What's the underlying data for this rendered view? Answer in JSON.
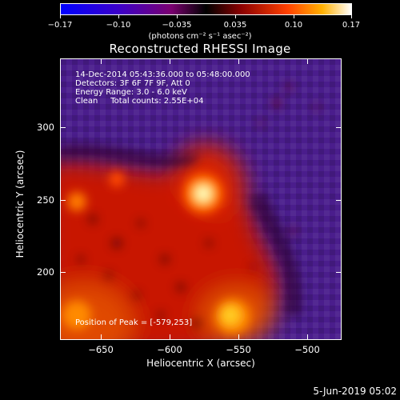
{
  "colorbar": {
    "tick_labels": [
      "−0.17",
      "−0.10",
      "−0.035",
      "0.035",
      "0.10",
      "0.17"
    ],
    "tick_values": [
      -0.17,
      -0.1,
      -0.035,
      0.035,
      0.1,
      0.17
    ],
    "unit_label": "(photons cm⁻² s⁻¹ asec⁻²)"
  },
  "title": "Reconstructed RHESSI Image",
  "info": {
    "line1": "14-Dec-2014 05:43:36.000 to 05:48:00.000",
    "line2": "Detectors: 3F 6F 7F 9F, Att 0",
    "line3": "Energy Range: 3.0 - 6.0 keV",
    "line4": "Clean     Total counts: 2.55E+04",
    "peak": "Position of Peak = [-579,253]"
  },
  "axes": {
    "x_label": "Heliocentric X (arcsec)",
    "y_label": "Heliocentric Y (arcsec)",
    "x_ticks": [
      "−650",
      "−600",
      "−550",
      "−500"
    ],
    "x_tick_values": [
      -650,
      -600,
      -550,
      -500
    ],
    "y_ticks": [
      "300",
      "250",
      "200"
    ],
    "y_tick_values": [
      300,
      250,
      200
    ],
    "xlim": [
      -676,
      -484
    ],
    "ylim": [
      146,
      338
    ]
  },
  "footer": {
    "date": "5-Jun-2019 05:02"
  }
}
